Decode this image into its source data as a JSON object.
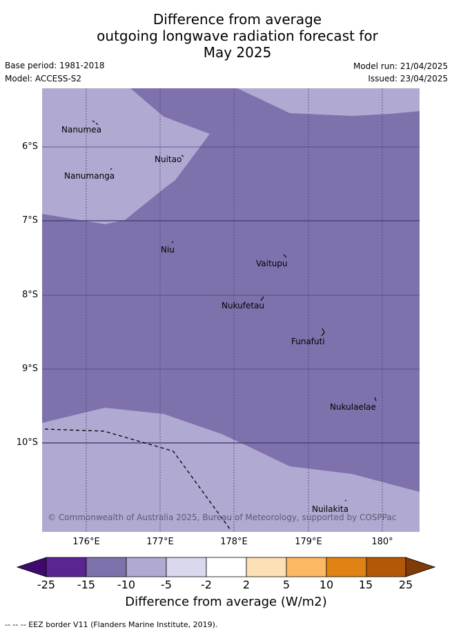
{
  "title": {
    "line1": "Difference from average",
    "line2": "outgoing longwave radiation forecast for",
    "line3": "May 2025"
  },
  "meta": {
    "base_period": "Base period: 1981-2018",
    "model": "Model: ACCESS-S2",
    "model_run": "Model run: 21/04/2025",
    "issued": "Issued: 23/04/2025"
  },
  "map": {
    "y_ticks": [
      "6°S",
      "7°S",
      "8°S",
      "9°S",
      "10°S"
    ],
    "x_ticks": [
      "176°E",
      "177°E",
      "178°E",
      "179°E",
      "180°"
    ],
    "islands": [
      "Nanumea",
      "Nuitao",
      "Nanumanga",
      "Niu",
      "Vaitupu",
      "Nukufetau",
      "Funafuti",
      "Nukulaelae",
      "Nuilakita"
    ],
    "copyright": "© Commonwealth of Australia 2025, Bureau of Meteorology, supported by COSPPac",
    "colors": {
      "band_minus15_to_minus10": "#7f72ac",
      "band_minus10_to_minus5": "#b0a9d2",
      "grid": "#4a3f7a",
      "eez_border": "#000000"
    }
  },
  "colorbar": {
    "ticks": [
      "-25",
      "-15",
      "-10",
      "-5",
      "-2",
      "2",
      "5",
      "10",
      "15",
      "25"
    ],
    "colors": [
      "#3f0a6c",
      "#5a2590",
      "#7f72ac",
      "#b0a9d2",
      "#d9d8ec",
      "#ffffff",
      "#fde0b5",
      "#fdb863",
      "#e08214",
      "#b35806",
      "#7f3b08"
    ],
    "label": "Difference from average (W/m2)"
  },
  "footnote": "-- --  -- EEZ border V11 (Flanders Marine Institute, 2019)."
}
